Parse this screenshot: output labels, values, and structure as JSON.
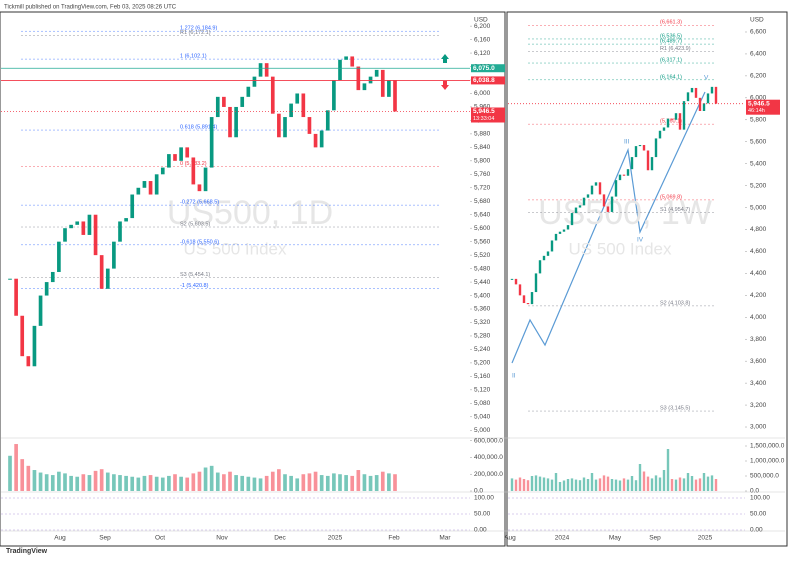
{
  "header": "Tickmill published on TradingView.com, Feb 03, 2025 08:26 UTC",
  "footer": "TradingView",
  "chart_data": [
    {
      "type": "candlestick",
      "watermark": "US500, 1D",
      "watermark_sub": "US 500 Index",
      "ylim": [
        4980,
        6236
      ],
      "yticks": [
        {
          "value": 5000,
          "label": "5,000"
        },
        {
          "value": 5040,
          "label": "5,040"
        },
        {
          "value": 5080,
          "label": "5,080"
        },
        {
          "value": 5120,
          "label": "5,120"
        },
        {
          "value": 5160,
          "label": "5,160"
        },
        {
          "value": 5200,
          "label": "5,200"
        },
        {
          "value": 5240,
          "label": "5,240"
        },
        {
          "value": 5280,
          "label": "5,280"
        },
        {
          "value": 5320,
          "label": "5,320"
        },
        {
          "value": 5360,
          "label": "5,360"
        },
        {
          "value": 5400,
          "label": "5,400"
        },
        {
          "value": 5440,
          "label": "5,440"
        },
        {
          "value": 5480,
          "label": "5,480"
        },
        {
          "value": 5520,
          "label": "5,520"
        },
        {
          "value": 5560,
          "label": "5,560"
        },
        {
          "value": 5600,
          "label": "5,600"
        },
        {
          "value": 5640,
          "label": "5,640"
        },
        {
          "value": 5680,
          "label": "5,680"
        },
        {
          "value": 5720,
          "label": "5,720"
        },
        {
          "value": 5760,
          "label": "5,760"
        },
        {
          "value": 5800,
          "label": "5,800"
        },
        {
          "value": 5840,
          "label": "5,840"
        },
        {
          "value": 5880,
          "label": "5,880"
        },
        {
          "value": 5920,
          "label": "5,920"
        },
        {
          "value": 5960,
          "label": "5,960"
        },
        {
          "value": 6000,
          "label": "6,000"
        },
        {
          "value": 6040,
          "label": "6,040"
        },
        {
          "value": 6080,
          "label": "6,080"
        },
        {
          "value": 6120,
          "label": "6,120"
        },
        {
          "value": 6160,
          "label": "6,160"
        },
        {
          "value": 6200,
          "label": "6,200"
        }
      ],
      "axis_unit": "USD",
      "x_labels": [
        "Aug",
        "Sep",
        "Oct",
        "Nov",
        "Dec",
        "2025",
        "Feb",
        "Mar"
      ],
      "values": [
        5450,
        5340,
        5220,
        5190,
        5310,
        5400,
        5440,
        5470,
        5560,
        5600,
        5610,
        5620,
        5580,
        5640,
        5520,
        5420,
        5480,
        5560,
        5620,
        5630,
        5700,
        5720,
        5740,
        5700,
        5760,
        5780,
        5820,
        5800,
        5840,
        5810,
        5730,
        5710,
        5780,
        5930,
        5990,
        5960,
        5870,
        5960,
        5990,
        6020,
        6050,
        6090,
        6050,
        5940,
        5870,
        5930,
        5970,
        6000,
        5930,
        5880,
        5840,
        5890,
        5950,
        6040,
        6100,
        6110,
        6080,
        6010,
        6030,
        6050,
        6070,
        5990,
        6040,
        5946.5
      ],
      "volume": [
        420000,
        560000,
        380000,
        300000,
        250000,
        220000,
        200000,
        190000,
        230000,
        210000,
        180000,
        170000,
        200000,
        190000,
        240000,
        260000,
        220000,
        200000,
        190000,
        180000,
        170000,
        160000,
        180000,
        190000,
        170000,
        160000,
        180000,
        200000,
        170000,
        160000,
        210000,
        230000,
        280000,
        300000,
        220000,
        200000,
        230000,
        190000,
        180000,
        170000,
        160000,
        150000,
        180000,
        230000,
        260000,
        200000,
        180000,
        150000,
        200000,
        210000,
        230000,
        190000,
        180000,
        210000,
        200000,
        190000,
        180000,
        250000,
        200000,
        180000,
        190000,
        230000,
        210000,
        200000
      ],
      "vol_ylim": [
        0,
        620000
      ],
      "vol_ticks": [
        {
          "value": 0,
          "label": "0.0"
        },
        {
          "value": 200000,
          "label": "200,000.0"
        },
        {
          "value": 400000,
          "label": "400,000.0"
        },
        {
          "value": 600000,
          "label": "600,000.0"
        }
      ],
      "osc_ticks": [
        {
          "value": 0,
          "label": "0.00"
        },
        {
          "value": 50,
          "label": "50.00"
        },
        {
          "value": 100,
          "label": "100.00"
        }
      ],
      "levels": [
        {
          "label": "1.272 (6,184.9)",
          "value": 6184.9,
          "color": "#2962ff"
        },
        {
          "label": "R1 (6,172.1)",
          "value": 6172.1,
          "color": "#787b86"
        },
        {
          "label": "1 (6,102.1)",
          "value": 6102.1,
          "color": "#2962ff"
        },
        {
          "label": "0.618 (5,891.4)",
          "value": 5891.4,
          "color": "#2962ff"
        },
        {
          "label": "0 (5,783.2)",
          "value": 5783.2,
          "color": "#f23645"
        },
        {
          "label": "-0.272 (5,668.5)",
          "value": 5668.5,
          "color": "#2962ff"
        },
        {
          "label": "S2 (5,603.5)",
          "value": 5603.5,
          "color": "#787b86"
        },
        {
          "label": "-0.618 (5,550.6)",
          "value": 5550.6,
          "color": "#2962ff"
        },
        {
          "label": "S3 (5,454.1)",
          "value": 5454.1,
          "color": "#787b86"
        },
        {
          "label": "-1 (5,420.8)",
          "value": 5420.8,
          "color": "#2962ff"
        }
      ],
      "markers": [
        {
          "label": "6,075.0",
          "value": 6075.0,
          "color": "#22ab94"
        },
        {
          "label": "6,038.8",
          "value": 6038.8,
          "color": "#f23645"
        },
        {
          "label": "5,946.5",
          "value": 5946.5,
          "color": "#f23645",
          "sub": "13:33:04"
        }
      ]
    },
    {
      "type": "candlestick",
      "watermark": "US500, 1W",
      "watermark_sub": "US 500 Index",
      "ylim": [
        2909,
        6764
      ],
      "yticks": [
        {
          "value": 3000,
          "label": "3,000"
        },
        {
          "value": 3200,
          "label": "3,200"
        },
        {
          "value": 3400,
          "label": "3,400"
        },
        {
          "value": 3600,
          "label": "3,600"
        },
        {
          "value": 3800,
          "label": "3,800"
        },
        {
          "value": 4000,
          "label": "4,000"
        },
        {
          "value": 4200,
          "label": "4,200"
        },
        {
          "value": 4400,
          "label": "4,400"
        },
        {
          "value": 4600,
          "label": "4,600"
        },
        {
          "value": 4800,
          "label": "4,800"
        },
        {
          "value": 5000,
          "label": "5,000"
        },
        {
          "value": 5200,
          "label": "5,200"
        },
        {
          "value": 5400,
          "label": "5,400"
        },
        {
          "value": 5600,
          "label": "5,600"
        },
        {
          "value": 5800,
          "label": "5,800"
        },
        {
          "value": 6000,
          "label": "6,000"
        },
        {
          "value": 6200,
          "label": "6,200"
        },
        {
          "value": 6400,
          "label": "6,400"
        },
        {
          "value": 6600,
          "label": "6,600"
        }
      ],
      "axis_unit": "USD",
      "x_labels": [
        "Aug",
        "2024",
        "May",
        "Sep",
        "2025"
      ],
      "values": [
        4350,
        4300,
        4200,
        4130,
        4120,
        4230,
        4400,
        4520,
        4560,
        4600,
        4700,
        4760,
        4780,
        4800,
        4840,
        4950,
        5000,
        5020,
        5090,
        5120,
        5200,
        5230,
        5120,
        5010,
        4960,
        5100,
        5250,
        5300,
        5290,
        5350,
        5460,
        5560,
        5570,
        5520,
        5340,
        5460,
        5630,
        5700,
        5730,
        5810,
        5800,
        5860,
        5710,
        5970,
        6050,
        6090,
        6000,
        5880,
        5950,
        6040,
        6100,
        5946.5
      ],
      "volume": [
        420000,
        380000,
        450000,
        400000,
        360000,
        500000,
        520000,
        480000,
        450000,
        420000,
        380000,
        600000,
        300000,
        350000,
        400000,
        420000,
        380000,
        360000,
        450000,
        400000,
        600000,
        380000,
        420000,
        520000,
        480000,
        400000,
        380000,
        350000,
        420000,
        380000,
        500000,
        360000,
        900000,
        650000,
        480000,
        420000,
        520000,
        450000,
        700000,
        1400000,
        400000,
        380000,
        450000,
        420000,
        600000,
        500000,
        380000,
        420000,
        600000,
        480000,
        520000,
        400000
      ],
      "vol_ylim": [
        0,
        1700000
      ],
      "vol_ticks": [
        {
          "value": 0,
          "label": "0.0"
        },
        {
          "value": 500000,
          "label": "500,000.0"
        },
        {
          "value": 1000000,
          "label": "1,000,000.0"
        },
        {
          "value": 1500000,
          "label": "1,500,000.0"
        }
      ],
      "osc_ticks": [
        {
          "value": 0,
          "label": "0.00"
        },
        {
          "value": 50,
          "label": "50.00"
        },
        {
          "value": 100,
          "label": "100.00"
        }
      ],
      "levels": [
        {
          "label": "(6,661.3)",
          "value": 6661.3,
          "color": "#f23645"
        },
        {
          "label": "(6,536.5)",
          "value": 6536.5,
          "color": "#089981"
        },
        {
          "label": "(6,489.7)",
          "value": 6489.7,
          "color": "#089981"
        },
        {
          "label": "R1 (6,423.9)",
          "value": 6423.9,
          "color": "#787b86"
        },
        {
          "label": "(6,317.1)",
          "value": 6317.1,
          "color": "#089981"
        },
        {
          "label": "(6,164.1)",
          "value": 6164.1,
          "color": "#089981"
        },
        {
          "label": "(5,760.1)",
          "value": 5760.1,
          "color": "#f23645"
        },
        {
          "label": "(5,069.8)",
          "value": 5069.8,
          "color": "#f23645"
        },
        {
          "label": "S1 (4,954.7)",
          "value": 4954.7,
          "color": "#787b86"
        },
        {
          "label": "S2 (4,103.8)",
          "value": 4103.8,
          "color": "#787b86"
        },
        {
          "label": "S3 (3,145.5)",
          "value": 3145.5,
          "color": "#787b86"
        }
      ],
      "markers": [
        {
          "label": "5,946.5",
          "value": 5946.5,
          "color": "#f23645",
          "sub": "46:14h"
        }
      ],
      "wave_labels": [
        "II",
        "III",
        "IV",
        "V"
      ]
    }
  ]
}
